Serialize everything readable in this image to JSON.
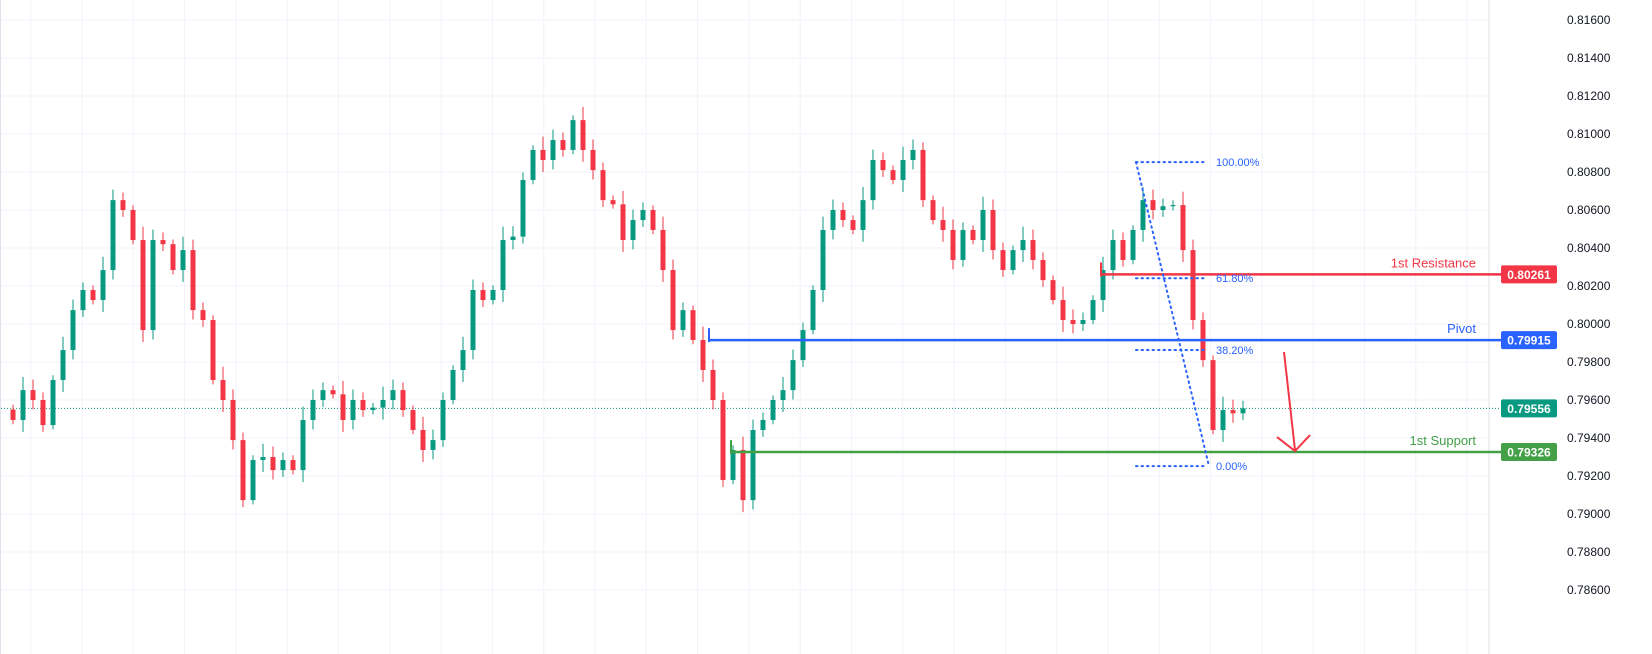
{
  "chart_data": {
    "type": "candlestick",
    "title": "",
    "ylim": [
      0.785,
      0.817
    ],
    "y_ticks": [
      "0.81600",
      "0.81400",
      "0.81200",
      "0.81000",
      "0.80800",
      "0.80600",
      "0.80400",
      "0.80200",
      "0.80000",
      "0.79800",
      "0.79600",
      "0.79400",
      "0.79200",
      "0.79000",
      "0.78800",
      "0.78600"
    ],
    "y_tick_values": [
      0.816,
      0.814,
      0.812,
      0.81,
      0.808,
      0.806,
      0.804,
      0.802,
      0.8,
      0.798,
      0.796,
      0.794,
      0.792,
      0.79,
      0.788,
      0.786
    ],
    "first_open": 0.7955,
    "closes": [
      0.79495,
      0.79652,
      0.796,
      0.79468,
      0.79705,
      0.79863,
      0.80073,
      0.80179,
      0.80126,
      0.80284,
      0.80652,
      0.806,
      0.80442,
      0.79968,
      0.80442,
      0.8042,
      0.80284,
      0.80389,
      0.80073,
      0.80021,
      0.79705,
      0.796,
      0.79389,
      0.79073,
      0.79284,
      0.793,
      0.79231,
      0.79284,
      0.79231,
      0.79495,
      0.796,
      0.79652,
      0.7963,
      0.79495,
      0.796,
      0.79547,
      0.7956,
      0.796,
      0.79652,
      0.79547,
      0.79442,
      0.79337,
      0.79389,
      0.796,
      0.79758,
      0.79863,
      0.80179,
      0.80126,
      0.80179,
      0.80442,
      0.8046,
      0.80758,
      0.80916,
      0.80863,
      0.80968,
      0.80916,
      0.81073,
      0.80916,
      0.8081,
      0.80652,
      0.8063,
      0.80442,
      0.80547,
      0.806,
      0.80495,
      0.80284,
      0.79968,
      0.80073,
      0.79916,
      0.79758,
      0.796,
      0.79179,
      0.79337,
      0.79073,
      0.79442,
      0.79495,
      0.796,
      0.79652,
      0.7981,
      0.79968,
      0.80179,
      0.80495,
      0.806,
      0.80547,
      0.80495,
      0.80652,
      0.80863,
      0.8081,
      0.80758,
      0.80863,
      0.80916,
      0.80652,
      0.80547,
      0.80495,
      0.80337,
      0.80495,
      0.80442,
      0.806,
      0.80389,
      0.80284,
      0.80389,
      0.80442,
      0.80337,
      0.80231,
      0.80126,
      0.80021,
      0.8,
      0.80021,
      0.80126,
      0.80284,
      0.80442,
      0.80337,
      0.80495,
      0.80652,
      0.806,
      0.8062,
      0.80626,
      0.80389,
      0.80021,
      0.7981,
      0.79442,
      0.79547,
      0.7953,
      0.79556
    ],
    "colors": {
      "up": "#089981",
      "down": "#f23645"
    },
    "levels": [
      {
        "label": "1st Resistance",
        "value": 0.80261,
        "tag": "0.80261",
        "color": "#f23645"
      },
      {
        "label": "Pivot",
        "value": 0.79915,
        "tag": "0.79915",
        "color": "#2962ff"
      },
      {
        "label": "1st Support",
        "value": 0.79326,
        "tag": "0.79326",
        "color": "#43a047"
      }
    ],
    "last_price": {
      "value": 0.79556,
      "tag": "0.79556",
      "color": "#089981"
    },
    "fibonacci": {
      "high": 0.80852,
      "low": 0.79252,
      "levels": [
        {
          "ratio": 1.0,
          "label": "100.00%"
        },
        {
          "ratio": 0.618,
          "label": "61.80%"
        },
        {
          "ratio": 0.382,
          "label": "38.20%"
        },
        {
          "ratio": 0.0,
          "label": "0.00%"
        }
      ]
    },
    "annotation": {
      "type": "arrow",
      "direction": "down",
      "color": "#f23645",
      "target": 0.79326
    }
  }
}
